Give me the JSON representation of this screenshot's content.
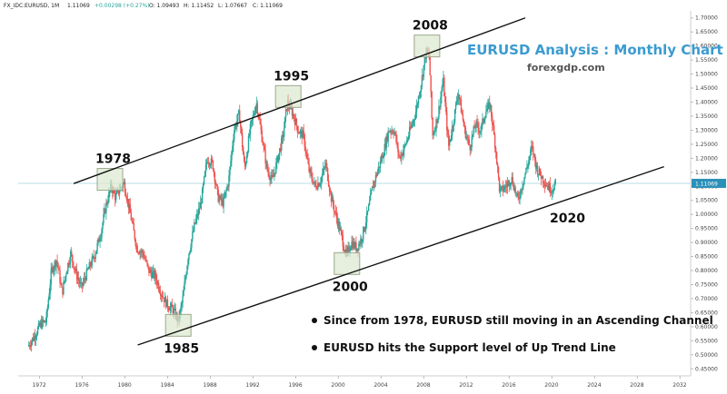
{
  "header": {
    "symbol": "FX_IDC:EURUSD, 1M",
    "last": "1.11069",
    "change": "+0.00298 (+0.27%)",
    "open": "O: 1.09493",
    "high": "H: 1.11452",
    "low": "L: 1.07667",
    "close": "C: 1.11069"
  },
  "colors": {
    "up": "#26a69a",
    "down": "#ef5350",
    "title": "#3a9bd1",
    "box": "#dbe8cf",
    "price_line": "#b7dce4",
    "price_tag": "#2a90b8"
  },
  "chart_data": {
    "type": "candlestick",
    "title": "EURUSD Analysis : Monthly Chart",
    "subtitle": "forexgdp.com",
    "x_range": [
      1970,
      2033
    ],
    "y_range": [
      0.425,
      1.725
    ],
    "x_ticks": [
      "1972",
      "1976",
      "1980",
      "1984",
      "1988",
      "1992",
      "1996",
      "2000",
      "2004",
      "2008",
      "2012",
      "2016",
      "2020",
      "2024",
      "2028",
      "2032"
    ],
    "y_ticks": [
      "1.70000",
      "1.65000",
      "1.60000",
      "1.55000",
      "1.50000",
      "1.45000",
      "1.40000",
      "1.35000",
      "1.30000",
      "1.25000",
      "1.20000",
      "1.15000",
      "1.10000",
      "1.05000",
      "1.00000",
      "0.95000",
      "0.90000",
      "0.85000",
      "0.80000",
      "0.75000",
      "0.70000",
      "0.65000",
      "0.60000",
      "0.55000",
      "0.50000",
      "0.45000"
    ],
    "current_price": "1.11069",
    "price_path": [
      [
        1971.0,
        0.53
      ],
      [
        1971.5,
        0.56
      ],
      [
        1972.2,
        0.61
      ],
      [
        1972.7,
        0.62
      ],
      [
        1973.2,
        0.8
      ],
      [
        1973.7,
        0.84
      ],
      [
        1974.2,
        0.72
      ],
      [
        1974.6,
        0.8
      ],
      [
        1975.0,
        0.86
      ],
      [
        1975.5,
        0.79
      ],
      [
        1976.0,
        0.74
      ],
      [
        1976.6,
        0.8
      ],
      [
        1977.2,
        0.85
      ],
      [
        1977.8,
        0.93
      ],
      [
        1978.3,
        1.03
      ],
      [
        1978.8,
        1.1
      ],
      [
        1979.2,
        1.06
      ],
      [
        1979.6,
        1.09
      ],
      [
        1980.0,
        1.11
      ],
      [
        1980.6,
        1.0
      ],
      [
        1981.2,
        0.88
      ],
      [
        1981.8,
        0.86
      ],
      [
        1982.3,
        0.8
      ],
      [
        1982.9,
        0.78
      ],
      [
        1983.5,
        0.72
      ],
      [
        1984.0,
        0.68
      ],
      [
        1984.6,
        0.66
      ],
      [
        1985.1,
        0.62
      ],
      [
        1985.5,
        0.7
      ],
      [
        1986.0,
        0.85
      ],
      [
        1986.6,
        0.96
      ],
      [
        1987.2,
        1.04
      ],
      [
        1987.8,
        1.2
      ],
      [
        1988.3,
        1.18
      ],
      [
        1988.8,
        1.06
      ],
      [
        1989.3,
        1.04
      ],
      [
        1989.8,
        1.12
      ],
      [
        1990.3,
        1.3
      ],
      [
        1990.8,
        1.36
      ],
      [
        1991.3,
        1.16
      ],
      [
        1991.8,
        1.3
      ],
      [
        1992.4,
        1.4
      ],
      [
        1992.9,
        1.28
      ],
      [
        1993.4,
        1.16
      ],
      [
        1993.9,
        1.12
      ],
      [
        1994.4,
        1.2
      ],
      [
        1994.9,
        1.28
      ],
      [
        1995.3,
        1.4
      ],
      [
        1995.8,
        1.36
      ],
      [
        1996.3,
        1.3
      ],
      [
        1996.8,
        1.28
      ],
      [
        1997.3,
        1.16
      ],
      [
        1997.9,
        1.1
      ],
      [
        1998.4,
        1.12
      ],
      [
        1998.9,
        1.18
      ],
      [
        1999.4,
        1.06
      ],
      [
        1999.9,
        0.99
      ],
      [
        2000.4,
        0.92
      ],
      [
        2000.8,
        0.85
      ],
      [
        2001.3,
        0.9
      ],
      [
        2001.8,
        0.88
      ],
      [
        2002.3,
        0.92
      ],
      [
        2002.8,
        1.0
      ],
      [
        2003.3,
        1.1
      ],
      [
        2003.8,
        1.16
      ],
      [
        2004.3,
        1.22
      ],
      [
        2004.8,
        1.3
      ],
      [
        2005.3,
        1.3
      ],
      [
        2005.8,
        1.2
      ],
      [
        2006.3,
        1.24
      ],
      [
        2006.8,
        1.3
      ],
      [
        2007.3,
        1.36
      ],
      [
        2007.8,
        1.46
      ],
      [
        2008.3,
        1.58
      ],
      [
        2008.6,
        1.56
      ],
      [
        2008.9,
        1.28
      ],
      [
        2009.4,
        1.35
      ],
      [
        2009.9,
        1.48
      ],
      [
        2010.4,
        1.24
      ],
      [
        2010.9,
        1.34
      ],
      [
        2011.3,
        1.44
      ],
      [
        2011.9,
        1.3
      ],
      [
        2012.4,
        1.24
      ],
      [
        2012.9,
        1.32
      ],
      [
        2013.4,
        1.3
      ],
      [
        2013.9,
        1.37
      ],
      [
        2014.3,
        1.39
      ],
      [
        2014.8,
        1.24
      ],
      [
        2015.2,
        1.08
      ],
      [
        2015.8,
        1.1
      ],
      [
        2016.3,
        1.13
      ],
      [
        2016.9,
        1.05
      ],
      [
        2017.4,
        1.12
      ],
      [
        2017.9,
        1.19
      ],
      [
        2018.2,
        1.24
      ],
      [
        2018.7,
        1.16
      ],
      [
        2019.2,
        1.13
      ],
      [
        2019.7,
        1.1
      ],
      [
        2020.1,
        1.09
      ],
      [
        2020.4,
        1.11
      ]
    ],
    "channel_lines": [
      {
        "name": "resistance",
        "from": [
          1975.2,
          1.11
        ],
        "to": [
          2017.5,
          1.7
        ]
      },
      {
        "name": "support",
        "from": [
          1981.2,
          0.535
        ],
        "to": [
          2030.5,
          1.17
        ]
      }
    ],
    "annotations": [
      {
        "label": "1978",
        "x": 1978.6,
        "y": 1.125
      },
      {
        "label": "1985",
        "x": 1985.0,
        "y": 0.605
      },
      {
        "label": "1995",
        "x": 1995.3,
        "y": 1.42
      },
      {
        "label": "2000",
        "x": 2000.8,
        "y": 0.825
      },
      {
        "label": "2008",
        "x": 2008.3,
        "y": 1.6
      },
      {
        "label": "2020",
        "x": 2021.0,
        "y": 1.03
      }
    ],
    "notes": [
      "Since from 1978, EURUSD still moving in an Ascending Channel",
      "EURUSD hits the Support level of Up Trend Line"
    ]
  }
}
